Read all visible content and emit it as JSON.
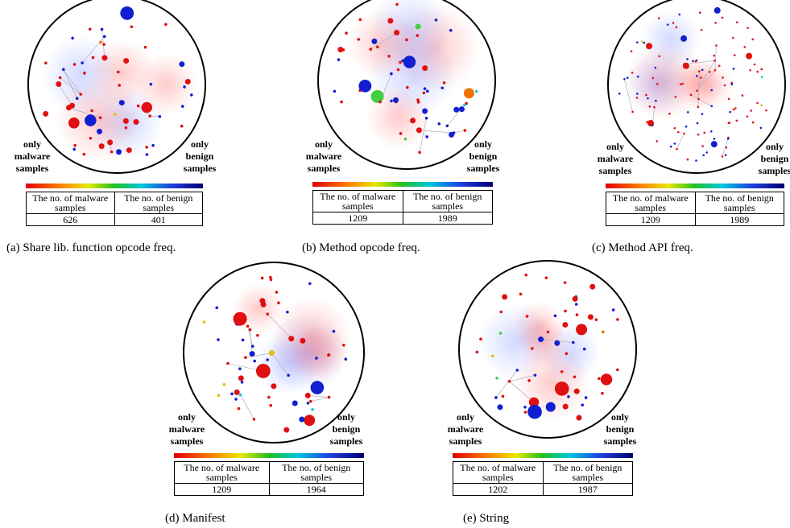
{
  "panels": [
    {
      "caption": "(a)  Share lib. function opcode freq.",
      "left_label": [
        "only",
        "malware",
        "samples"
      ],
      "right_label": [
        "only",
        "benign",
        "samples"
      ],
      "table": {
        "header": [
          "The no. of malware samples",
          "The no. of benign samples"
        ],
        "values": [
          626,
          401
        ]
      }
    },
    {
      "caption": "(b)  Method opcode freq.",
      "left_label": [
        "only",
        "malware",
        "samples"
      ],
      "right_label": [
        "only",
        "benign",
        "samples"
      ],
      "table": {
        "header": [
          "The no. of malware samples",
          "The no. of benign samples"
        ],
        "values": [
          1209,
          1989
        ]
      }
    },
    {
      "caption": "(c)  Method API freq.",
      "left_label": [
        "only",
        "malware",
        "samples"
      ],
      "right_label": [
        "only",
        "benign",
        "samples"
      ],
      "table": {
        "header": [
          "The no. of malware samples",
          "The no. of benign samples"
        ],
        "values": [
          1209,
          1989
        ]
      }
    },
    {
      "caption": "(d)  Manifest",
      "left_label": [
        "only",
        "malware",
        "samples"
      ],
      "right_label": [
        "only",
        "benign",
        "samples"
      ],
      "table": {
        "header": [
          "The no. of malware samples",
          "The no. of benign samples"
        ],
        "values": [
          1209,
          1964
        ]
      }
    },
    {
      "caption": "(e)  String",
      "left_label": [
        "only",
        "malware",
        "samples"
      ],
      "right_label": [
        "only",
        "benign",
        "samples"
      ],
      "table": {
        "header": [
          "The no. of malware samples",
          "The no. of benign samples"
        ],
        "values": [
          1202,
          1987
        ]
      }
    }
  ]
}
